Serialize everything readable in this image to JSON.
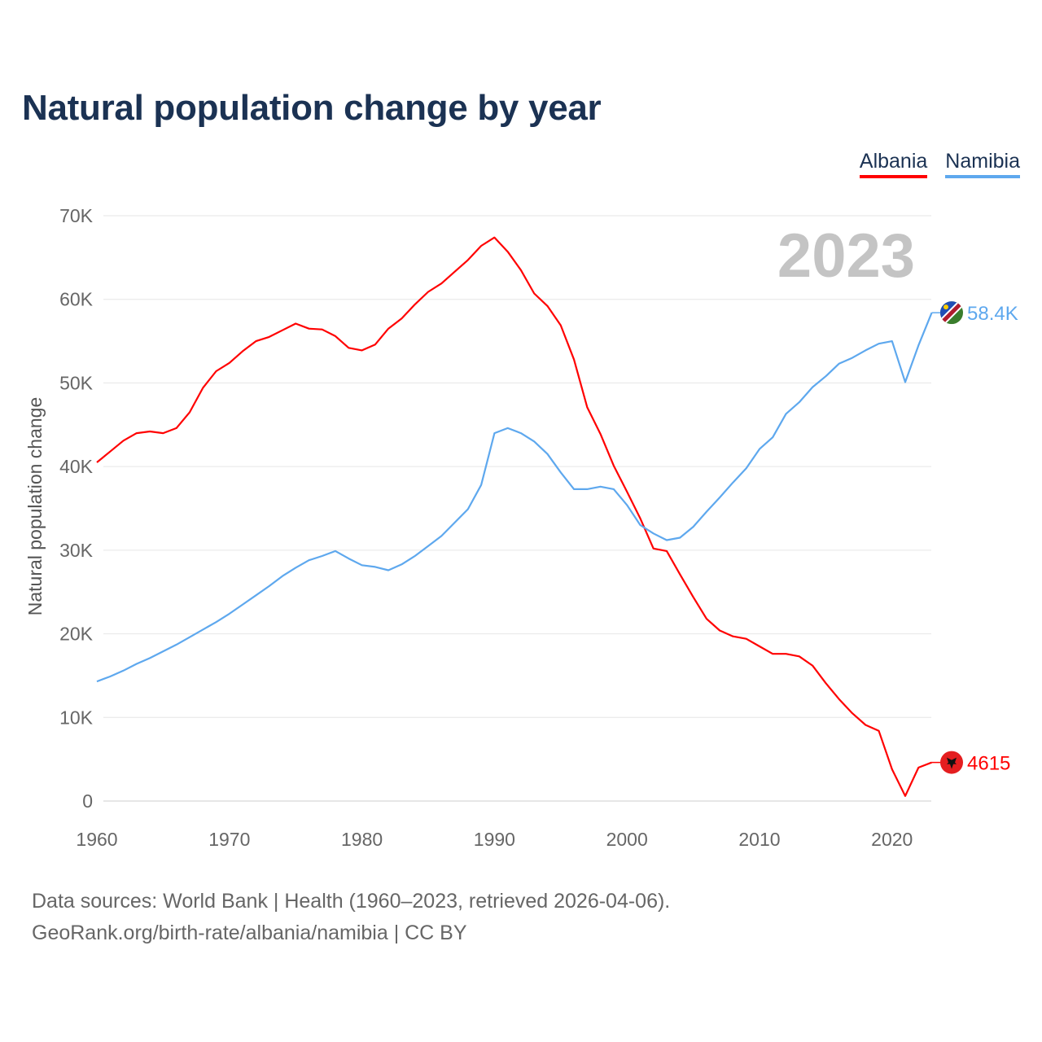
{
  "title": "Natural population change by year",
  "legend": [
    {
      "label": "Albania",
      "color": "#ff0000"
    },
    {
      "label": "Namibia",
      "color": "#5ea8ee"
    }
  ],
  "footer": {
    "line1": "Data sources: World Bank | Health (1960–2023, retrieved 2026-04-06).",
    "line2": "GeoRank.org/birth-rate/albania/namibia | CC BY"
  },
  "chart_data": {
    "type": "line",
    "title": "Natural population change by year",
    "xlabel": "",
    "ylabel": "Natural population change",
    "year_watermark": "2023",
    "xlim": [
      1960,
      2023
    ],
    "ylim": [
      0,
      70000
    ],
    "x_ticks": [
      "1960",
      "1970",
      "1980",
      "1990",
      "2000",
      "2010",
      "2020"
    ],
    "y_ticks": [
      "0",
      "10K",
      "20K",
      "30K",
      "40K",
      "50K",
      "60K",
      "70K"
    ],
    "grid": true,
    "legend_position": "top-right",
    "x_start": 1960,
    "series": [
      {
        "name": "Albania",
        "color": "#ff0000",
        "end_label": "4615",
        "values": [
          40500,
          41800,
          43100,
          44000,
          44200,
          44000,
          44600,
          46500,
          49400,
          51400,
          52400,
          53800,
          55000,
          55500,
          56300,
          57100,
          56500,
          56400,
          55600,
          54200,
          53900,
          54600,
          56500,
          57700,
          59400,
          60900,
          61900,
          63300,
          64700,
          66400,
          67400,
          65700,
          63500,
          60700,
          59200,
          56900,
          52800,
          47100,
          43900,
          40100,
          37000,
          33800,
          30200,
          29900,
          27100,
          24400,
          21800,
          20400,
          19700,
          19400,
          18500,
          17600,
          17600,
          17300,
          16200,
          14100,
          12200,
          10500,
          9100,
          8400,
          3800,
          600,
          4000,
          4615
        ]
      },
      {
        "name": "Namibia",
        "color": "#5ea8ee",
        "end_label": "58.4K",
        "values": [
          14300,
          14900,
          15600,
          16400,
          17100,
          17900,
          18700,
          19600,
          20500,
          21400,
          22400,
          23500,
          24600,
          25700,
          26900,
          27900,
          28800,
          29300,
          29900,
          29000,
          28200,
          28000,
          27600,
          28300,
          29300,
          30500,
          31700,
          33300,
          34900,
          37800,
          44000,
          44600,
          44000,
          43000,
          41500,
          39300,
          37300,
          37300,
          37600,
          37300,
          35400,
          33000,
          32000,
          31200,
          31500,
          32800,
          34600,
          36300,
          38100,
          39800,
          42100,
          43500,
          46300,
          47700,
          49500,
          50800,
          52300,
          53000,
          53900,
          54700,
          55000,
          50100,
          54500,
          58400
        ]
      }
    ]
  }
}
